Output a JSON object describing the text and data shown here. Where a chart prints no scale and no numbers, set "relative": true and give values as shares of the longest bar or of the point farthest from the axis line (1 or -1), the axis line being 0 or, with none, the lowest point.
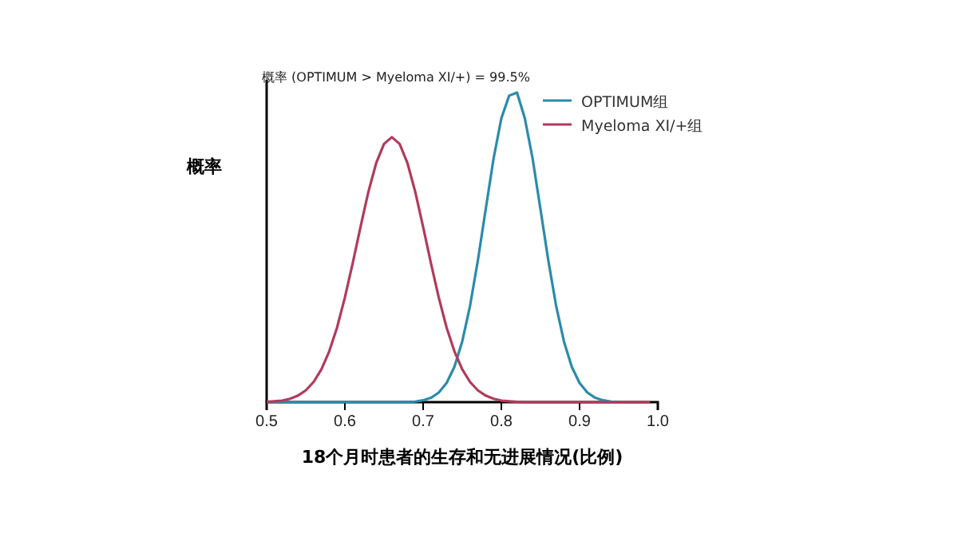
{
  "chart_data": {
    "type": "line",
    "relative": true,
    "ylabel": "概率",
    "xlabel": "18个月时患者的生存和无进展情况(比例)",
    "annotations": [
      "概率 (OPTIMUM > Myeloma XI/+) = 99.5%"
    ],
    "xlim": [
      0.5,
      1.0
    ],
    "xticks": [
      0.5,
      0.6,
      0.7,
      0.8,
      0.9,
      {
        "value": 1,
        "label": "1.0"
      }
    ],
    "x": [
      0.5,
      0.51,
      0.52,
      0.53,
      0.54,
      0.55,
      0.56,
      0.57,
      0.58,
      0.59,
      0.6,
      0.61,
      0.62,
      0.63,
      0.64,
      0.65,
      0.66,
      0.67,
      0.68,
      0.69,
      0.7,
      0.71,
      0.72,
      0.73,
      0.74,
      0.75,
      0.76,
      0.77,
      0.78,
      0.79,
      0.8,
      0.81,
      0.82,
      0.83,
      0.84,
      0.85,
      0.86,
      0.87,
      0.88,
      0.89,
      0.9,
      0.91,
      0.92,
      0.93,
      0.94,
      0.95,
      0.96,
      0.97,
      0.98,
      0.99
    ],
    "legend": "top right",
    "grid": false,
    "marker": "none",
    "line_style": "solid",
    "series": [
      {
        "name": "OPTIMUM组",
        "color": "#2b8bab",
        "values": [
          0,
          0,
          0,
          0,
          0,
          0,
          0,
          0,
          0,
          0,
          0,
          0,
          0,
          0,
          0,
          0,
          0,
          0,
          0.001,
          0.002,
          0.006,
          0.014,
          0.031,
          0.062,
          0.114,
          0.196,
          0.311,
          0.458,
          0.623,
          0.786,
          0.917,
          0.99,
          1,
          0.917,
          0.786,
          0.623,
          0.458,
          0.311,
          0.196,
          0.114,
          0.062,
          0.031,
          0.014,
          0.006,
          0.002,
          0.001,
          null,
          null,
          null,
          null
        ]
      },
      {
        "name": "Myeloma XI/+组",
        "color": "#b23a5c",
        "values": [
          0.001,
          0.003,
          0.005,
          0.011,
          0.021,
          0.038,
          0.065,
          0.106,
          0.164,
          0.241,
          0.338,
          0.449,
          0.566,
          0.679,
          0.772,
          0.834,
          0.856,
          0.834,
          0.772,
          0.679,
          0.566,
          0.449,
          0.338,
          0.241,
          0.164,
          0.106,
          0.065,
          0.038,
          0.021,
          0.011,
          0.005,
          0.003,
          0.001,
          0,
          0,
          0,
          0,
          0,
          0,
          0,
          0,
          0,
          0,
          0,
          0,
          0,
          0,
          0,
          0,
          0
        ]
      }
    ]
  }
}
